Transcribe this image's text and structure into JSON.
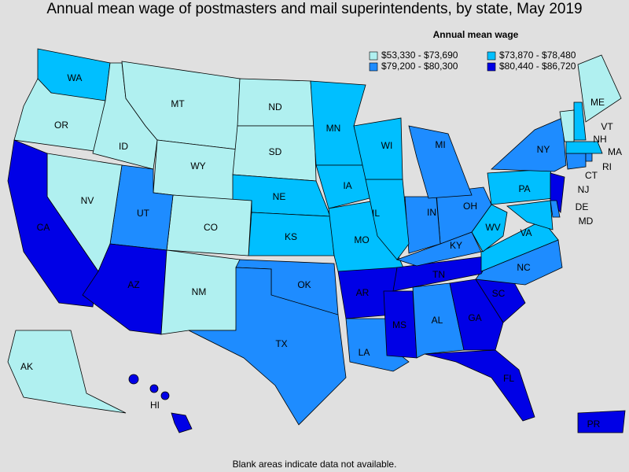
{
  "header": {
    "title": "Annual mean wage of postmasters and mail superintendents, by state, May 2019"
  },
  "legend": {
    "title": "Annual mean wage",
    "items": [
      {
        "label": "$53,330 - $73,690",
        "color": "#b0f0f0"
      },
      {
        "label": "$73,870 - $78,480",
        "color": "#00bfff"
      },
      {
        "label": "$79,200 - $80,300",
        "color": "#1e8cff"
      },
      {
        "label": "$80,440 - $86,720",
        "color": "#0000e6"
      }
    ]
  },
  "states": [
    {
      "label": "WA",
      "color": "#00bfff"
    },
    {
      "label": "OR",
      "color": "#b0f0f0"
    },
    {
      "label": "ID",
      "color": "#b0f0f0"
    },
    {
      "label": "MT",
      "color": "#b0f0f0"
    },
    {
      "label": "WY",
      "color": "#b0f0f0"
    },
    {
      "label": "ND",
      "color": "#b0f0f0"
    },
    {
      "label": "SD",
      "color": "#b0f0f0"
    },
    {
      "label": "NE",
      "color": "#00bfff"
    },
    {
      "label": "KS",
      "color": "#00bfff"
    },
    {
      "label": "CO",
      "color": "#b0f0f0"
    },
    {
      "label": "UT",
      "color": "#1e8cff"
    },
    {
      "label": "NV",
      "color": "#b0f0f0"
    },
    {
      "label": "CA",
      "color": "#0000e6"
    },
    {
      "label": "AZ",
      "color": "#0000e6"
    },
    {
      "label": "NM",
      "color": "#b0f0f0"
    },
    {
      "label": "OK",
      "color": "#1e8cff"
    },
    {
      "label": "TX",
      "color": "#1e8cff"
    },
    {
      "label": "MN",
      "color": "#00bfff"
    },
    {
      "label": "IA",
      "color": "#00bfff"
    },
    {
      "label": "MO",
      "color": "#00bfff"
    },
    {
      "label": "AR",
      "color": "#0000e6"
    },
    {
      "label": "LA",
      "color": "#1e8cff"
    },
    {
      "label": "MS",
      "color": "#0000e6"
    },
    {
      "label": "AL",
      "color": "#1e8cff"
    },
    {
      "label": "GA",
      "color": "#0000e6"
    },
    {
      "label": "FL",
      "color": "#0000e6"
    },
    {
      "label": "SC",
      "color": "#0000e6"
    },
    {
      "label": "NC",
      "color": "#1e8cff"
    },
    {
      "label": "TN",
      "color": "#0000e6"
    },
    {
      "label": "KY",
      "color": "#1e8cff"
    },
    {
      "label": "VA",
      "color": "#00bfff"
    },
    {
      "label": "WV",
      "color": "#00bfff"
    },
    {
      "label": "OH",
      "color": "#1e8cff"
    },
    {
      "label": "IN",
      "color": "#1e8cff"
    },
    {
      "label": "IL",
      "color": "#00bfff"
    },
    {
      "label": "WI",
      "color": "#00bfff"
    },
    {
      "label": "MI",
      "color": "#1e8cff"
    },
    {
      "label": "PA",
      "color": "#00bfff"
    },
    {
      "label": "NY",
      "color": "#1e8cff"
    },
    {
      "label": "NJ",
      "color": "#0000e6"
    },
    {
      "label": "DE",
      "color": "#1e8cff"
    },
    {
      "label": "MD",
      "color": "#00bfff"
    },
    {
      "label": "CT",
      "color": "#1e8cff"
    },
    {
      "label": "RI",
      "color": "#1e8cff"
    },
    {
      "label": "MA",
      "color": "#00bfff"
    },
    {
      "label": "NH",
      "color": "#00bfff"
    },
    {
      "label": "VT",
      "color": "#b0f0f0"
    },
    {
      "label": "ME",
      "color": "#b0f0f0"
    },
    {
      "label": "AK",
      "color": "#b0f0f0"
    },
    {
      "label": "HI",
      "color": "#0000e6"
    },
    {
      "label": "PR",
      "color": "#0000e6"
    }
  ],
  "footnote": "Blank areas indicate data not available."
}
